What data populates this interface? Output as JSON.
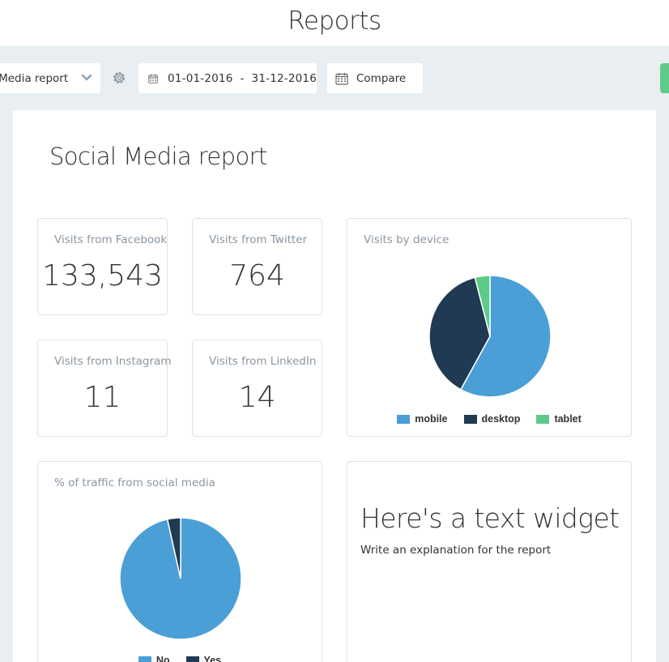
{
  "header": {
    "title": "Reports"
  },
  "toolbar": {
    "report_select": {
      "value": "ial Media report"
    },
    "date_range": {
      "value": "01-01-2016  -  31-12-2016"
    },
    "compare_label": "Compare"
  },
  "report": {
    "title": "Social Media report",
    "kpis": [
      {
        "label": "Visits from Facebook",
        "value": "133,543"
      },
      {
        "label": "Visits from Twitter",
        "value": "764"
      },
      {
        "label": "Visits from Instagram",
        "value": "11"
      },
      {
        "label": "Visits from LinkedIn",
        "value": "14"
      }
    ],
    "text_widget": {
      "title": "Here's a text widget",
      "body": "Write an explanation for the report"
    }
  },
  "chart_data": [
    {
      "type": "pie",
      "title": "Visits by device",
      "categories": [
        "mobile",
        "desktop",
        "tablet"
      ],
      "values": [
        58,
        38,
        4
      ],
      "colors": [
        "#4a9fd6",
        "#1f3a52",
        "#5ccb88"
      ],
      "legend": "bottom"
    },
    {
      "type": "pie",
      "title": "% of traffic from social media",
      "categories": [
        "No",
        "Yes"
      ],
      "values": [
        96.5,
        3.5
      ],
      "colors": [
        "#4a9fd6",
        "#1f3a52"
      ],
      "legend": "bottom"
    }
  ],
  "colors": {
    "background": "#e8eef1",
    "accent_green": "#5fcb8a",
    "label_gray": "#8a96a0"
  },
  "icons": {
    "chevron": "chevron-down-icon",
    "settings": "gear-icon",
    "calendar": "calendar-icon"
  }
}
